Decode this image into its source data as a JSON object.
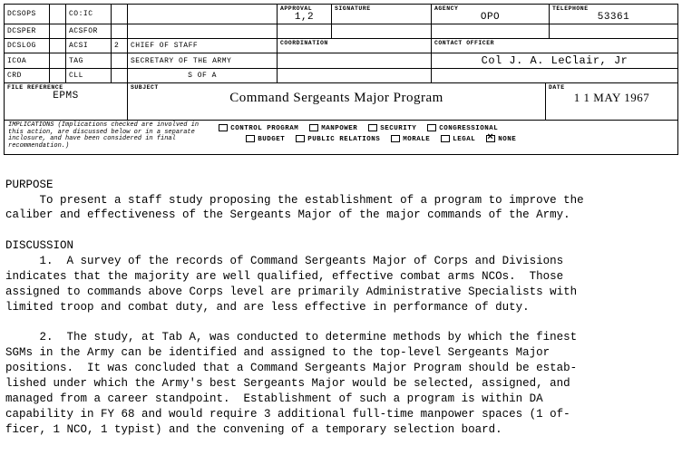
{
  "header": {
    "rows": [
      {
        "c1": "DCSOPS",
        "c2": "",
        "c3": "CO:IC",
        "c4": "",
        "mid": "",
        "approval_label": "APPROVAL",
        "approval": "1,2",
        "sig_label": "SIGNATURE",
        "sig": "",
        "agency_label": "AGENCY",
        "agency": "OPO",
        "tel_label": "TELEPHONE",
        "tel": "53361"
      },
      {
        "c1": "DCSPER",
        "c2": "",
        "c3": "ACSFOR",
        "c4": "",
        "mid": ""
      },
      {
        "c1": "DCSLOG",
        "c2": "",
        "c3": "ACSI",
        "c4": "2",
        "mid": "CHIEF OF STAFF",
        "coord_label": "COORDINATION",
        "coord": "",
        "contact_label": "CONTACT OFFICER"
      },
      {
        "c1": "ICOA",
        "c2": "",
        "c3": "TAG",
        "c4": "",
        "mid": "SECRETARY OF THE ARMY",
        "contact": "Col J. A. LeClair, Jr"
      },
      {
        "c1": "CRD",
        "c2": "",
        "c3": "CLL",
        "c4": "",
        "mid": "S OF A"
      }
    ],
    "file_ref_label": "FILE REFERENCE",
    "file_ref": "EPMS",
    "subject_label": "SUBJECT",
    "subject": "Command Sergeants Major Program",
    "date_label": "DATE",
    "date": "1 1 MAY 1967"
  },
  "implications": {
    "note": "IMPLICATIONS (Implications checked are involved in this action, are discussed below or in a separate inclosure, and have been considered in final recommendation.)",
    "row1": [
      {
        "label": "CONTROL PROGRAM",
        "checked": false
      },
      {
        "label": "MANPOWER",
        "checked": false
      },
      {
        "label": "SECURITY",
        "checked": false
      },
      {
        "label": "CONGRESSIONAL",
        "checked": false
      }
    ],
    "row2": [
      {
        "label": "BUDGET",
        "checked": false
      },
      {
        "label": "PUBLIC RELATIONS",
        "checked": false
      },
      {
        "label": "MORALE",
        "checked": false
      },
      {
        "label": "LEGAL",
        "checked": false
      },
      {
        "label": "NONE",
        "checked": true
      }
    ]
  },
  "body": {
    "purpose_hdr": "PURPOSE",
    "purpose": "     To present a staff study proposing the establishment of a program to improve the\ncaliber and effectiveness of the Sergeants Major of the major commands of the Army.",
    "discussion_hdr": "DISCUSSION",
    "para1": "     1.  A survey of the records of Command Sergeants Major of Corps and Divisions\nindicates that the majority are well qualified, effective combat arms NCOs.  Those\nassigned to commands above Corps level are primarily Administrative Specialists with\nlimited troop and combat duty, and are less effective in performance of duty.",
    "para2": "     2.  The study, at Tab A, was conducted to determine methods by which the finest\nSGMs in the Army can be identified and assigned to the top-level Sergeants Major\npositions.  It was concluded that a Command Sergeants Major Program should be estab-\nlished under which the Army's best Sergeants Major would be selected, assigned, and\nmanaged from a career standpoint.  Establishment of such a program is within DA\ncapability in FY 68 and would require 3 additional full-time manpower spaces (1 of-\nficer, 1 NCO, 1 typist) and the convening of a temporary selection board."
  }
}
